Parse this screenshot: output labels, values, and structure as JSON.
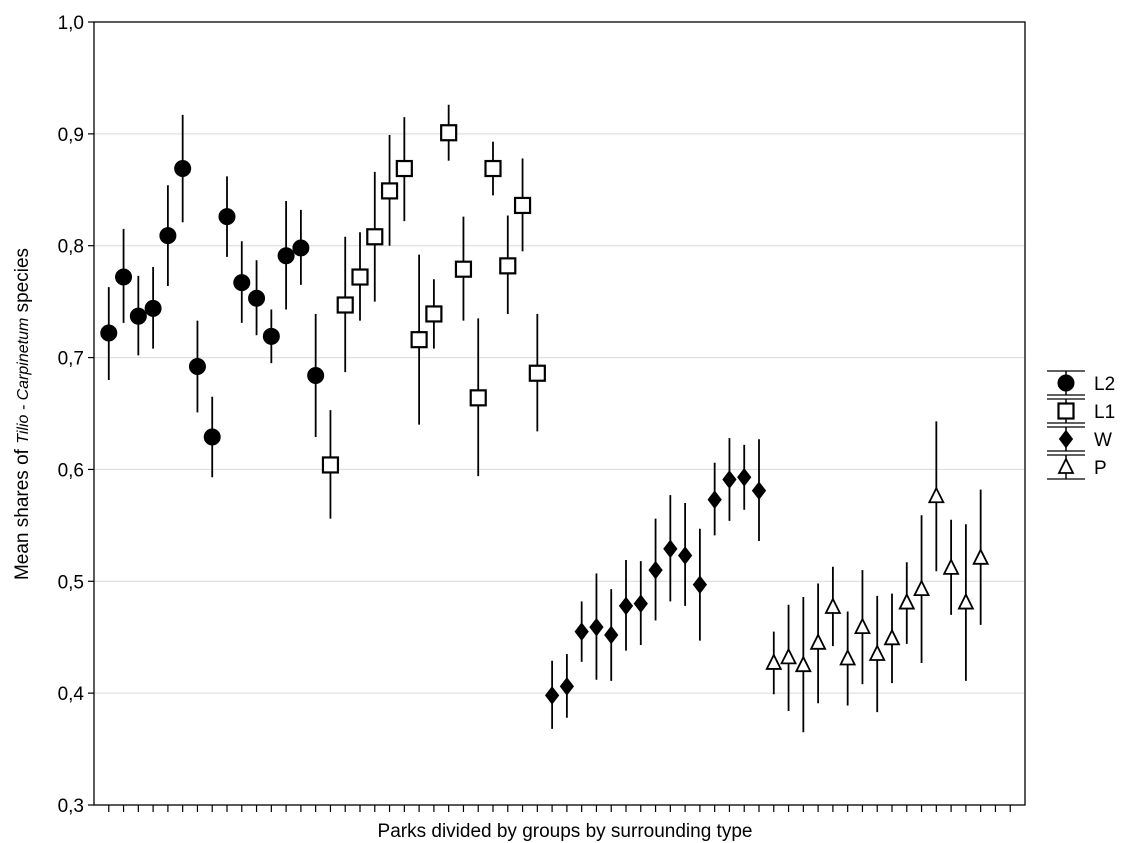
{
  "chart_data": {
    "type": "scatter",
    "xlabel": "Parks divided by groups by surrounding type",
    "ylabel_parts": [
      "Mean shares of ",
      "Tilio - Carpinetum",
      "  species"
    ],
    "ylim": [
      0.3,
      1.0
    ],
    "y_ticks": [
      "0,3",
      "0,4",
      "0,5",
      "0,6",
      "0,7",
      "0,8",
      "0,9",
      "1,0"
    ],
    "y_tick_values": [
      0.3,
      0.4,
      0.5,
      0.6,
      0.7,
      0.8,
      0.9,
      1.0
    ],
    "x_tick_count": 62,
    "grid": "horizontal",
    "legend_position": "right",
    "series": [
      {
        "name": "L2",
        "marker": "circle-filled",
        "points": [
          {
            "x": 1,
            "y": 0.722,
            "lo": 0.68,
            "hi": 0.763
          },
          {
            "x": 2,
            "y": 0.772,
            "lo": 0.731,
            "hi": 0.815
          },
          {
            "x": 3,
            "y": 0.737,
            "lo": 0.702,
            "hi": 0.773
          },
          {
            "x": 4,
            "y": 0.744,
            "lo": 0.708,
            "hi": 0.781
          },
          {
            "x": 5,
            "y": 0.809,
            "lo": 0.764,
            "hi": 0.854
          },
          {
            "x": 6,
            "y": 0.869,
            "lo": 0.821,
            "hi": 0.917
          },
          {
            "x": 7,
            "y": 0.692,
            "lo": 0.651,
            "hi": 0.733
          },
          {
            "x": 8,
            "y": 0.629,
            "lo": 0.593,
            "hi": 0.665
          },
          {
            "x": 9,
            "y": 0.826,
            "lo": 0.79,
            "hi": 0.862
          },
          {
            "x": 10,
            "y": 0.767,
            "lo": 0.731,
            "hi": 0.804
          },
          {
            "x": 11,
            "y": 0.753,
            "lo": 0.72,
            "hi": 0.787
          },
          {
            "x": 12,
            "y": 0.719,
            "lo": 0.695,
            "hi": 0.743
          },
          {
            "x": 13,
            "y": 0.791,
            "lo": 0.743,
            "hi": 0.84
          },
          {
            "x": 14,
            "y": 0.798,
            "lo": 0.765,
            "hi": 0.832
          },
          {
            "x": 15,
            "y": 0.684,
            "lo": 0.629,
            "hi": 0.739
          }
        ]
      },
      {
        "name": "L1",
        "marker": "square-open",
        "points": [
          {
            "x": 16,
            "y": 0.604,
            "lo": 0.556,
            "hi": 0.653
          },
          {
            "x": 17,
            "y": 0.747,
            "lo": 0.687,
            "hi": 0.808
          },
          {
            "x": 18,
            "y": 0.772,
            "lo": 0.733,
            "hi": 0.812
          },
          {
            "x": 19,
            "y": 0.808,
            "lo": 0.75,
            "hi": 0.866
          },
          {
            "x": 20,
            "y": 0.849,
            "lo": 0.8,
            "hi": 0.899
          },
          {
            "x": 21,
            "y": 0.869,
            "lo": 0.822,
            "hi": 0.915
          },
          {
            "x": 22,
            "y": 0.716,
            "lo": 0.64,
            "hi": 0.792
          },
          {
            "x": 23,
            "y": 0.739,
            "lo": 0.708,
            "hi": 0.77
          },
          {
            "x": 24,
            "y": 0.901,
            "lo": 0.876,
            "hi": 0.926
          },
          {
            "x": 25,
            "y": 0.779,
            "lo": 0.733,
            "hi": 0.826
          },
          {
            "x": 26,
            "y": 0.664,
            "lo": 0.594,
            "hi": 0.735
          },
          {
            "x": 27,
            "y": 0.869,
            "lo": 0.845,
            "hi": 0.893
          },
          {
            "x": 28,
            "y": 0.782,
            "lo": 0.739,
            "hi": 0.827
          },
          {
            "x": 29,
            "y": 0.836,
            "lo": 0.795,
            "hi": 0.878
          },
          {
            "x": 30,
            "y": 0.686,
            "lo": 0.634,
            "hi": 0.739
          }
        ]
      },
      {
        "name": "W",
        "marker": "diamond-filled",
        "points": [
          {
            "x": 31,
            "y": 0.398,
            "lo": 0.368,
            "hi": 0.429
          },
          {
            "x": 32,
            "y": 0.406,
            "lo": 0.378,
            "hi": 0.435
          },
          {
            "x": 33,
            "y": 0.455,
            "lo": 0.428,
            "hi": 0.482
          },
          {
            "x": 34,
            "y": 0.459,
            "lo": 0.412,
            "hi": 0.507
          },
          {
            "x": 35,
            "y": 0.452,
            "lo": 0.411,
            "hi": 0.493
          },
          {
            "x": 36,
            "y": 0.478,
            "lo": 0.438,
            "hi": 0.519
          },
          {
            "x": 37,
            "y": 0.48,
            "lo": 0.443,
            "hi": 0.518
          },
          {
            "x": 38,
            "y": 0.51,
            "lo": 0.465,
            "hi": 0.556
          },
          {
            "x": 39,
            "y": 0.529,
            "lo": 0.482,
            "hi": 0.577
          },
          {
            "x": 40,
            "y": 0.523,
            "lo": 0.478,
            "hi": 0.57
          },
          {
            "x": 41,
            "y": 0.497,
            "lo": 0.447,
            "hi": 0.547
          },
          {
            "x": 42,
            "y": 0.573,
            "lo": 0.541,
            "hi": 0.606
          },
          {
            "x": 43,
            "y": 0.591,
            "lo": 0.554,
            "hi": 0.628
          },
          {
            "x": 44,
            "y": 0.593,
            "lo": 0.564,
            "hi": 0.622
          },
          {
            "x": 45,
            "y": 0.581,
            "lo": 0.536,
            "hi": 0.627
          }
        ]
      },
      {
        "name": "P",
        "marker": "triangle-open",
        "points": [
          {
            "x": 46,
            "y": 0.427,
            "lo": 0.399,
            "hi": 0.455
          },
          {
            "x": 47,
            "y": 0.432,
            "lo": 0.384,
            "hi": 0.479
          },
          {
            "x": 48,
            "y": 0.425,
            "lo": 0.365,
            "hi": 0.486
          },
          {
            "x": 49,
            "y": 0.445,
            "lo": 0.391,
            "hi": 0.498
          },
          {
            "x": 50,
            "y": 0.477,
            "lo": 0.442,
            "hi": 0.513
          },
          {
            "x": 51,
            "y": 0.431,
            "lo": 0.389,
            "hi": 0.473
          },
          {
            "x": 52,
            "y": 0.459,
            "lo": 0.408,
            "hi": 0.51
          },
          {
            "x": 53,
            "y": 0.435,
            "lo": 0.383,
            "hi": 0.487
          },
          {
            "x": 54,
            "y": 0.449,
            "lo": 0.409,
            "hi": 0.489
          },
          {
            "x": 55,
            "y": 0.481,
            "lo": 0.444,
            "hi": 0.517
          },
          {
            "x": 56,
            "y": 0.493,
            "lo": 0.427,
            "hi": 0.559
          },
          {
            "x": 57,
            "y": 0.576,
            "lo": 0.509,
            "hi": 0.643
          },
          {
            "x": 58,
            "y": 0.512,
            "lo": 0.47,
            "hi": 0.555
          },
          {
            "x": 59,
            "y": 0.481,
            "lo": 0.411,
            "hi": 0.551
          },
          {
            "x": 60,
            "y": 0.521,
            "lo": 0.461,
            "hi": 0.582
          }
        ]
      }
    ]
  }
}
